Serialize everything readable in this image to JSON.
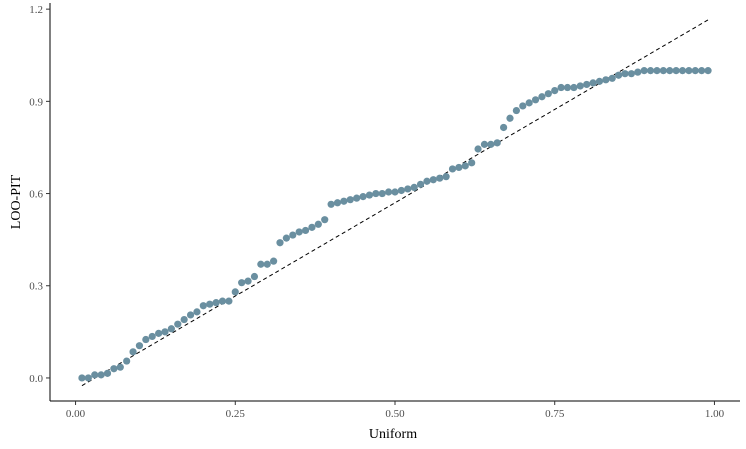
{
  "chart_data": {
    "type": "scatter",
    "title": "",
    "xlabel": "Uniform",
    "ylabel": "LOO-PIT",
    "xlim": [
      -0.04,
      1.04
    ],
    "ylim": [
      -0.075,
      1.22
    ],
    "xticks": [
      0.0,
      0.25,
      0.5,
      0.75,
      1.0
    ],
    "xtick_labels": [
      "0.00",
      "0.25",
      "0.50",
      "0.75",
      "1.00"
    ],
    "yticks": [
      0.0,
      0.3,
      0.6,
      0.9,
      1.2
    ],
    "ytick_labels": [
      "0.0",
      "0.3",
      "0.6",
      "0.9",
      "1.2"
    ],
    "grid": false,
    "colors": {
      "points": "#6a8fa0",
      "reference_line": "#000000"
    },
    "reference_line": {
      "style": "dashed",
      "x": [
        0.01,
        0.99
      ],
      "y": [
        -0.025,
        1.165
      ]
    },
    "series": [
      {
        "x": [
          0.01,
          0.02,
          0.03,
          0.04,
          0.05,
          0.06,
          0.07,
          0.08,
          0.09,
          0.1,
          0.11,
          0.12,
          0.13,
          0.14,
          0.15,
          0.16,
          0.17,
          0.18,
          0.19,
          0.2,
          0.21,
          0.22,
          0.23,
          0.24,
          0.25,
          0.26,
          0.27,
          0.28,
          0.29,
          0.3,
          0.31,
          0.32,
          0.33,
          0.34,
          0.35,
          0.36,
          0.37,
          0.38,
          0.39,
          0.4,
          0.41,
          0.42,
          0.43,
          0.44,
          0.45,
          0.46,
          0.47,
          0.48,
          0.49,
          0.5,
          0.51,
          0.52,
          0.53,
          0.54,
          0.55,
          0.56,
          0.57,
          0.58,
          0.59,
          0.6,
          0.61,
          0.62,
          0.63,
          0.64,
          0.65,
          0.66,
          0.67,
          0.68,
          0.69,
          0.7,
          0.71,
          0.72,
          0.73,
          0.74,
          0.75,
          0.76,
          0.77,
          0.78,
          0.79,
          0.8,
          0.81,
          0.82,
          0.83,
          0.84,
          0.85,
          0.86,
          0.87,
          0.88,
          0.89,
          0.9,
          0.91,
          0.92,
          0.93,
          0.94,
          0.95,
          0.96,
          0.97,
          0.98,
          0.99
        ],
        "y": [
          0.0,
          0.0,
          0.01,
          0.01,
          0.015,
          0.03,
          0.035,
          0.055,
          0.085,
          0.105,
          0.125,
          0.135,
          0.145,
          0.15,
          0.16,
          0.175,
          0.19,
          0.205,
          0.215,
          0.235,
          0.24,
          0.245,
          0.25,
          0.25,
          0.28,
          0.31,
          0.315,
          0.33,
          0.37,
          0.37,
          0.38,
          0.44,
          0.455,
          0.465,
          0.475,
          0.48,
          0.49,
          0.5,
          0.515,
          0.565,
          0.57,
          0.575,
          0.58,
          0.585,
          0.59,
          0.595,
          0.6,
          0.6,
          0.605,
          0.605,
          0.61,
          0.615,
          0.62,
          0.63,
          0.64,
          0.645,
          0.65,
          0.655,
          0.68,
          0.685,
          0.69,
          0.7,
          0.745,
          0.76,
          0.76,
          0.765,
          0.815,
          0.845,
          0.87,
          0.885,
          0.895,
          0.905,
          0.915,
          0.925,
          0.935,
          0.945,
          0.945,
          0.945,
          0.95,
          0.955,
          0.96,
          0.965,
          0.97,
          0.975,
          0.985,
          0.99,
          0.99,
          0.995,
          1.0,
          1.0,
          1.0,
          1.0,
          1.0,
          1.0,
          1.0,
          1.0,
          1.0,
          1.0,
          1.0
        ]
      }
    ]
  }
}
